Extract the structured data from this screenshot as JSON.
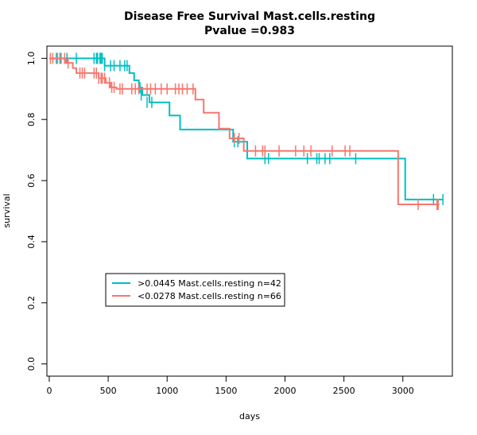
{
  "chart_data": {
    "type": "line",
    "step": true,
    "title": "Disease Free Survival Mast.cells.resting",
    "subtitle": "Pvalue =0.983",
    "xlabel": "days",
    "ylabel": "survival",
    "xlim": [
      0,
      3400
    ],
    "ylim": [
      0,
      1.04
    ],
    "x_ticks": [
      0,
      500,
      1000,
      1500,
      2000,
      2500,
      3000
    ],
    "y_ticks": [
      0.0,
      0.2,
      0.4,
      0.6,
      0.8,
      1.0
    ],
    "x_tick_labels": [
      "0",
      "500",
      "1000",
      "1500",
      "2000",
      "2500",
      "3000"
    ],
    "y_tick_labels": [
      "0.0",
      "0.2",
      "0.4",
      "0.6",
      "0.8",
      "1.0"
    ],
    "grid": false,
    "legend_position": "bottom-left",
    "series": [
      {
        "name": ">0.0445 Mast.cells.resting n=42",
        "color": "#00BFC4",
        "steps": [
          [
            0,
            1.0
          ],
          [
            470,
            0.976
          ],
          [
            680,
            0.952
          ],
          [
            720,
            0.928
          ],
          [
            760,
            0.904
          ],
          [
            790,
            0.88
          ],
          [
            850,
            0.856
          ],
          [
            1020,
            0.813
          ],
          [
            1110,
            0.767
          ],
          [
            1560,
            0.727
          ],
          [
            1680,
            0.672
          ],
          [
            3020,
            0.538
          ],
          [
            3340,
            0.538
          ]
        ],
        "censored": [
          [
            60,
            1.0
          ],
          [
            100,
            1.0
          ],
          [
            150,
            1.0
          ],
          [
            230,
            1.0
          ],
          [
            380,
            1.0
          ],
          [
            400,
            1.0
          ],
          [
            410,
            1.0
          ],
          [
            430,
            1.0
          ],
          [
            440,
            1.0
          ],
          [
            450,
            1.0
          ],
          [
            470,
            0.976
          ],
          [
            520,
            0.976
          ],
          [
            550,
            0.976
          ],
          [
            600,
            0.976
          ],
          [
            640,
            0.976
          ],
          [
            660,
            0.976
          ],
          [
            770,
            0.904
          ],
          [
            780,
            0.88
          ],
          [
            830,
            0.856
          ],
          [
            870,
            0.856
          ],
          [
            1570,
            0.727
          ],
          [
            1600,
            0.727
          ],
          [
            1830,
            0.672
          ],
          [
            1860,
            0.672
          ],
          [
            2190,
            0.672
          ],
          [
            2270,
            0.672
          ],
          [
            2290,
            0.672
          ],
          [
            2340,
            0.672
          ],
          [
            2380,
            0.672
          ],
          [
            2600,
            0.672
          ],
          [
            3260,
            0.538
          ],
          [
            3340,
            0.538
          ]
        ]
      },
      {
        "name": "<0.0278 Mast.cells.resting n=66",
        "color": "#F8766D",
        "steps": [
          [
            0,
            1.0
          ],
          [
            140,
            0.985
          ],
          [
            200,
            0.968
          ],
          [
            230,
            0.952
          ],
          [
            420,
            0.935
          ],
          [
            480,
            0.92
          ],
          [
            520,
            0.905
          ],
          [
            570,
            0.9
          ],
          [
            1240,
            0.865
          ],
          [
            1310,
            0.822
          ],
          [
            1440,
            0.77
          ],
          [
            1530,
            0.738
          ],
          [
            1650,
            0.697
          ],
          [
            2960,
            0.522
          ],
          [
            3310,
            0.522
          ]
        ],
        "censored": [
          [
            10,
            1.0
          ],
          [
            30,
            1.0
          ],
          [
            70,
            1.0
          ],
          [
            90,
            1.0
          ],
          [
            130,
            1.0
          ],
          [
            160,
            0.985
          ],
          [
            260,
            0.952
          ],
          [
            280,
            0.952
          ],
          [
            300,
            0.952
          ],
          [
            380,
            0.952
          ],
          [
            400,
            0.952
          ],
          [
            420,
            0.935
          ],
          [
            440,
            0.935
          ],
          [
            450,
            0.935
          ],
          [
            470,
            0.935
          ],
          [
            510,
            0.92
          ],
          [
            530,
            0.905
          ],
          [
            550,
            0.905
          ],
          [
            600,
            0.9
          ],
          [
            620,
            0.9
          ],
          [
            700,
            0.9
          ],
          [
            730,
            0.9
          ],
          [
            760,
            0.9
          ],
          [
            830,
            0.9
          ],
          [
            860,
            0.9
          ],
          [
            900,
            0.9
          ],
          [
            950,
            0.9
          ],
          [
            1000,
            0.9
          ],
          [
            1070,
            0.9
          ],
          [
            1100,
            0.9
          ],
          [
            1130,
            0.9
          ],
          [
            1170,
            0.9
          ],
          [
            1220,
            0.9
          ],
          [
            1570,
            0.738
          ],
          [
            1610,
            0.738
          ],
          [
            1750,
            0.697
          ],
          [
            1810,
            0.697
          ],
          [
            1830,
            0.697
          ],
          [
            1950,
            0.697
          ],
          [
            2090,
            0.697
          ],
          [
            2160,
            0.697
          ],
          [
            2220,
            0.697
          ],
          [
            2400,
            0.697
          ],
          [
            2510,
            0.697
          ],
          [
            2550,
            0.697
          ],
          [
            3130,
            0.522
          ],
          [
            3290,
            0.522
          ],
          [
            3300,
            0.522
          ]
        ]
      }
    ]
  }
}
